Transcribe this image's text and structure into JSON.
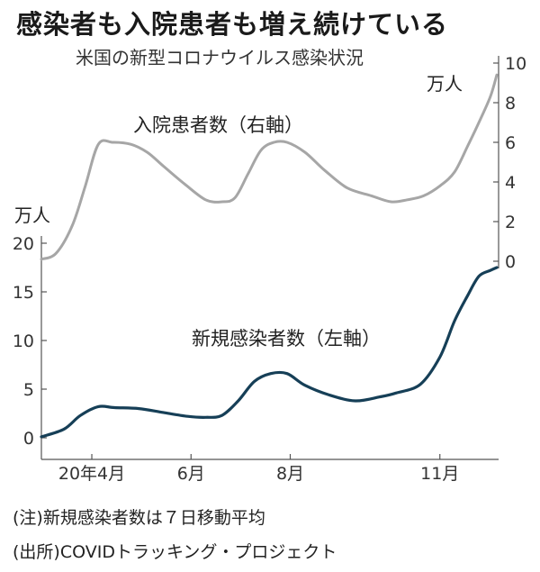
{
  "headline": "感染者も入院患者も増え続けている",
  "chart_data": {
    "type": "line",
    "title": "米国の新型コロナウイルス感染状況",
    "left_axis": {
      "unit": "万人",
      "ticks": [
        0,
        5,
        10,
        15,
        20
      ],
      "range": [
        0,
        20
      ]
    },
    "right_axis": {
      "unit": "万人",
      "ticks": [
        0,
        2,
        4,
        6,
        8,
        10
      ],
      "range": [
        0,
        10
      ]
    },
    "x_range": [
      "2020-03-01",
      "2020-12-06"
    ],
    "x_ticks": [
      {
        "date": "2020-04-01",
        "label": "20年4月"
      },
      {
        "date": "2020-06-01",
        "label": "6月"
      },
      {
        "date": "2020-08-01",
        "label": "8月"
      },
      {
        "date": "2020-11-01",
        "label": "11月"
      }
    ],
    "series": [
      {
        "name": "入院患者数（右軸）",
        "axis": "right",
        "color": "#a6a6a6",
        "x": [
          "2020-03-01",
          "2020-03-10",
          "2020-03-20",
          "2020-03-28",
          "2020-04-05",
          "2020-04-14",
          "2020-04-25",
          "2020-05-05",
          "2020-05-15",
          "2020-05-28",
          "2020-06-10",
          "2020-06-20",
          "2020-06-28",
          "2020-07-06",
          "2020-07-14",
          "2020-07-22",
          "2020-07-30",
          "2020-08-10",
          "2020-08-22",
          "2020-09-05",
          "2020-09-20",
          "2020-10-02",
          "2020-10-12",
          "2020-10-22",
          "2020-11-01",
          "2020-11-10",
          "2020-11-18",
          "2020-11-25",
          "2020-12-02",
          "2020-12-06"
        ],
        "values": [
          0.1,
          0.4,
          1.8,
          3.8,
          5.9,
          6.0,
          5.9,
          5.5,
          4.8,
          3.9,
          3.1,
          3.0,
          3.2,
          4.4,
          5.6,
          6.0,
          6.0,
          5.5,
          4.6,
          3.7,
          3.3,
          3.0,
          3.1,
          3.3,
          3.8,
          4.5,
          5.8,
          7.0,
          8.3,
          9.4
        ]
      },
      {
        "name": "新規感染者数（左軸）",
        "axis": "left",
        "color": "#163f57",
        "x": [
          "2020-03-01",
          "2020-03-15",
          "2020-03-25",
          "2020-04-05",
          "2020-04-15",
          "2020-04-30",
          "2020-05-15",
          "2020-05-30",
          "2020-06-10",
          "2020-06-20",
          "2020-06-30",
          "2020-07-10",
          "2020-07-20",
          "2020-07-30",
          "2020-08-10",
          "2020-08-25",
          "2020-09-10",
          "2020-09-25",
          "2020-10-05",
          "2020-10-20",
          "2020-11-01",
          "2020-11-10",
          "2020-11-18",
          "2020-11-25",
          "2020-12-02",
          "2020-12-06"
        ],
        "values": [
          0.1,
          0.9,
          2.3,
          3.2,
          3.1,
          3.0,
          2.6,
          2.2,
          2.1,
          2.3,
          3.8,
          5.8,
          6.6,
          6.6,
          5.4,
          4.4,
          3.8,
          4.2,
          4.6,
          5.5,
          8.3,
          12.0,
          14.6,
          16.6,
          17.2,
          17.5
        ]
      }
    ]
  },
  "notes": {
    "note1": "(注)新規感染者数は７日移動平均",
    "note2": "(出所)COVIDトラッキング・プロジェクト"
  }
}
